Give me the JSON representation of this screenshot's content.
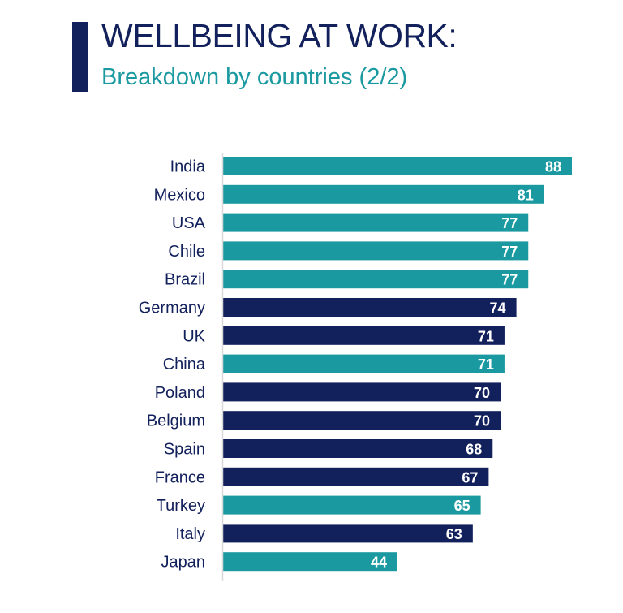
{
  "header": {
    "title": "WELLBEING AT WORK:",
    "subtitle": "Breakdown by countries (2/2)"
  },
  "colors": {
    "navy": "#12205b",
    "teal": "#1a9aa0",
    "axis": "#d9d9d9"
  },
  "chart_data": {
    "type": "bar",
    "orientation": "horizontal",
    "title": "WELLBEING AT WORK: Breakdown by countries (2/2)",
    "xlabel": "",
    "ylabel": "",
    "xlim": [
      0,
      88
    ],
    "categories": [
      "India",
      "Mexico",
      "USA",
      "Chile",
      "Brazil",
      "Germany",
      "UK",
      "China",
      "Poland",
      "Belgium",
      "Spain",
      "France",
      "Turkey",
      "Italy",
      "Japan"
    ],
    "values": [
      88,
      81,
      77,
      77,
      77,
      74,
      71,
      71,
      70,
      70,
      68,
      67,
      65,
      63,
      44
    ],
    "bar_colors": [
      "teal",
      "teal",
      "teal",
      "teal",
      "teal",
      "navy",
      "navy",
      "teal",
      "navy",
      "navy",
      "navy",
      "navy",
      "teal",
      "navy",
      "teal"
    ]
  }
}
